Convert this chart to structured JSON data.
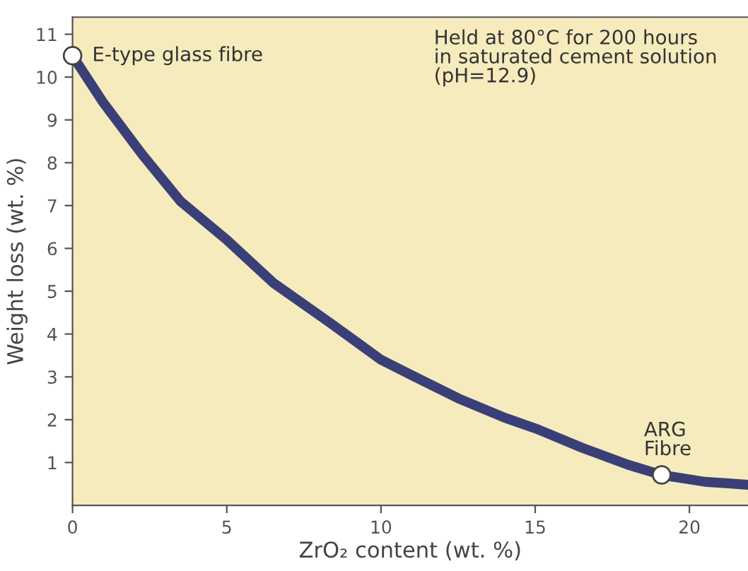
{
  "chart_data": {
    "type": "line",
    "xlabel": "ZrO₂ content (wt. %)",
    "ylabel": "Weight loss (wt. %)",
    "series": [
      {
        "color": "#3b3f78",
        "x": [
          0,
          1,
          2.25,
          3.5,
          5,
          6.5,
          8.35,
          10,
          11.1,
          12.5,
          14,
          15.1,
          16.5,
          18,
          19.1,
          20.5,
          21.9
        ],
        "values": [
          10.5,
          9.4,
          8.2,
          7.1,
          6.2,
          5.2,
          4.26,
          3.4,
          3.0,
          2.5,
          2.05,
          1.77,
          1.35,
          0.95,
          0.71,
          0.55,
          0.48
        ]
      },
      {
        "type": "scatter",
        "color": "#ffffff",
        "x": [
          0,
          19.1
        ],
        "values": [
          10.5,
          0.71
        ]
      }
    ],
    "annotations": [
      {
        "text": "E-type glass fibre",
        "x": 0,
        "y": 10.5
      },
      "Held at 80°C for 200 hours\nin saturated cement solution\n(pH=12.9)",
      {
        "text": "ARG\nFibre",
        "x": 19.1,
        "y": 0.71
      }
    ],
    "xlim": [
      0,
      21.9
    ],
    "ylim": [
      0,
      11.4
    ],
    "xticks": [
      0,
      5,
      10,
      15,
      20
    ],
    "yticks": [
      1,
      2,
      3,
      4,
      5,
      6,
      7,
      8,
      9,
      10,
      11
    ],
    "grid": false,
    "legend": false
  }
}
